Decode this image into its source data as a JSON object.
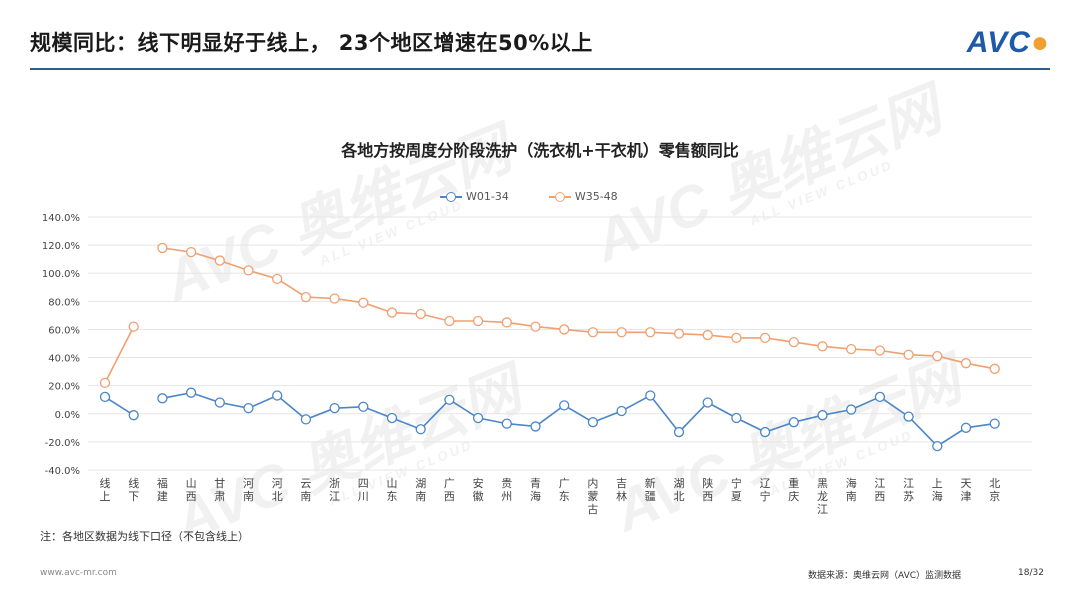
{
  "header": {
    "title": "规模同比：线下明显好于线上， 23个地区增速在50%以上",
    "logo_text": "AVC"
  },
  "watermark": {
    "cn": "奥维云网",
    "en": "ALL VIEW CLOUD",
    "brand": "AVC"
  },
  "colors": {
    "series1": "#4a86c8",
    "series2": "#f0a070",
    "rule": "#2d5f8a",
    "grid": "#e6e6e6"
  },
  "footnote": "注：各地区数据为线下口径（不包含线上）",
  "footer": {
    "url": "www.avc-mr.com",
    "source": "数据来源：奥维云网（AVC）监测数据",
    "page": "18/32"
  },
  "chart_data": {
    "type": "line",
    "title": "各地方按周度分阶段洗护（洗衣机+干衣机）零售额同比",
    "categories": [
      "线上",
      "线下",
      "福建",
      "山西",
      "甘肃",
      "河南",
      "河北",
      "云南",
      "浙江",
      "四川",
      "山东",
      "湖南",
      "广西",
      "安徽",
      "贵州",
      "青海",
      "广东",
      "内蒙古",
      "吉林",
      "新疆",
      "湖北",
      "陕西",
      "宁夏",
      "辽宁",
      "重庆",
      "黑龙江",
      "海南",
      "江西",
      "江苏",
      "上海",
      "天津",
      "北京"
    ],
    "series": [
      {
        "name": "W01-34",
        "values": [
          12,
          -1,
          11,
          15,
          8,
          4,
          13,
          -4,
          4,
          5,
          -3,
          -11,
          10,
          -3,
          -7,
          -9,
          6,
          -6,
          2,
          13,
          -13,
          8,
          -3,
          -13,
          -6,
          -1,
          3,
          12,
          -2,
          -23,
          -10,
          -7
        ]
      },
      {
        "name": "W35-48",
        "values": [
          22,
          62,
          118,
          115,
          109,
          102,
          96,
          83,
          82,
          79,
          72,
          71,
          66,
          66,
          65,
          62,
          60,
          58,
          58,
          58,
          57,
          56,
          54,
          54,
          51,
          48,
          46,
          45,
          42,
          41,
          36,
          32
        ]
      }
    ],
    "yticks": [
      "140.0%",
      "120.0%",
      "100.0%",
      "80.0%",
      "60.0%",
      "40.0%",
      "20.0%",
      "0.0%",
      "-20.0%",
      "-40.0%"
    ],
    "ylim": [
      -40,
      140
    ],
    "grid": true,
    "legend_position": "top-center"
  }
}
